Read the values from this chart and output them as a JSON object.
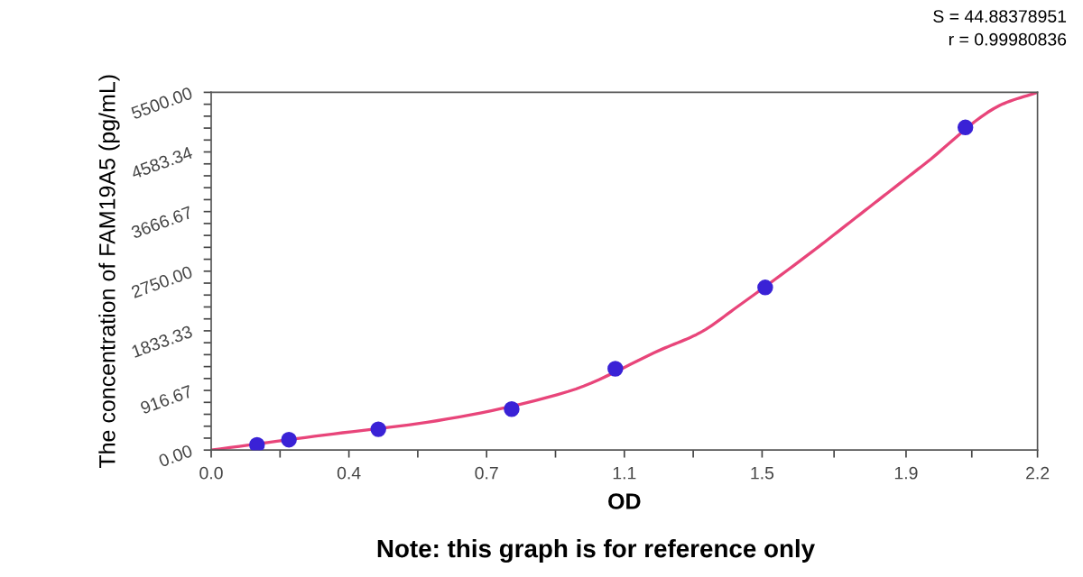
{
  "chart_data": {
    "type": "scatter",
    "xlabel": "OD",
    "ylabel": "The concentration of FAM19A5 (pg/mL)",
    "annotations": [
      "S = 44.88378951",
      "r = 0.99980836",
      "Note: this graph is for reference only"
    ],
    "series": [
      {
        "color": "#3a22d6",
        "marker": "circle",
        "x": [
          0.122,
          0.207,
          0.445,
          0.8,
          1.076,
          1.475,
          2.008
        ],
        "values": [
          80,
          160,
          320,
          630,
          1250,
          2500,
          4960
        ]
      },
      {
        "type": "line",
        "color": "#e8457a",
        "marker": "none",
        "line_style": "solid",
        "x": [
          0,
          0.3,
          0.6,
          0.95,
          1.2,
          1.3,
          1.4,
          1.6,
          1.7,
          1.8,
          1.9,
          2.1,
          2.2
        ],
        "values": [
          0,
          230,
          450,
          900,
          1550,
          1800,
          2200,
          3050,
          3500,
          3950,
          4400,
          5300,
          5500
        ]
      }
    ],
    "xlim": [
      0,
      2.2
    ],
    "ylim": [
      0,
      5500
    ],
    "xticks": [
      {
        "value": 0,
        "label": "0.0"
      },
      {
        "value": 0.3667,
        "label": "0.4"
      },
      {
        "value": 0.7333,
        "label": "0.7"
      },
      1.1,
      {
        "value": 1.4667,
        "label": "1.5"
      },
      {
        "value": 1.85,
        "label": "1.9"
      },
      2.2
    ],
    "yticks": [
      {
        "value": 0,
        "label": "0.00"
      },
      {
        "value": 916.67,
        "label": "916.67"
      },
      {
        "value": 1833.33,
        "label": "1833.33"
      },
      {
        "value": 2750,
        "label": "2750.00"
      },
      {
        "value": 3666.67,
        "label": "3666.67"
      },
      {
        "value": 4583.34,
        "label": "4583.34"
      },
      {
        "value": 5500,
        "label": "5500.00"
      }
    ],
    "grid": false,
    "legend": false
  }
}
